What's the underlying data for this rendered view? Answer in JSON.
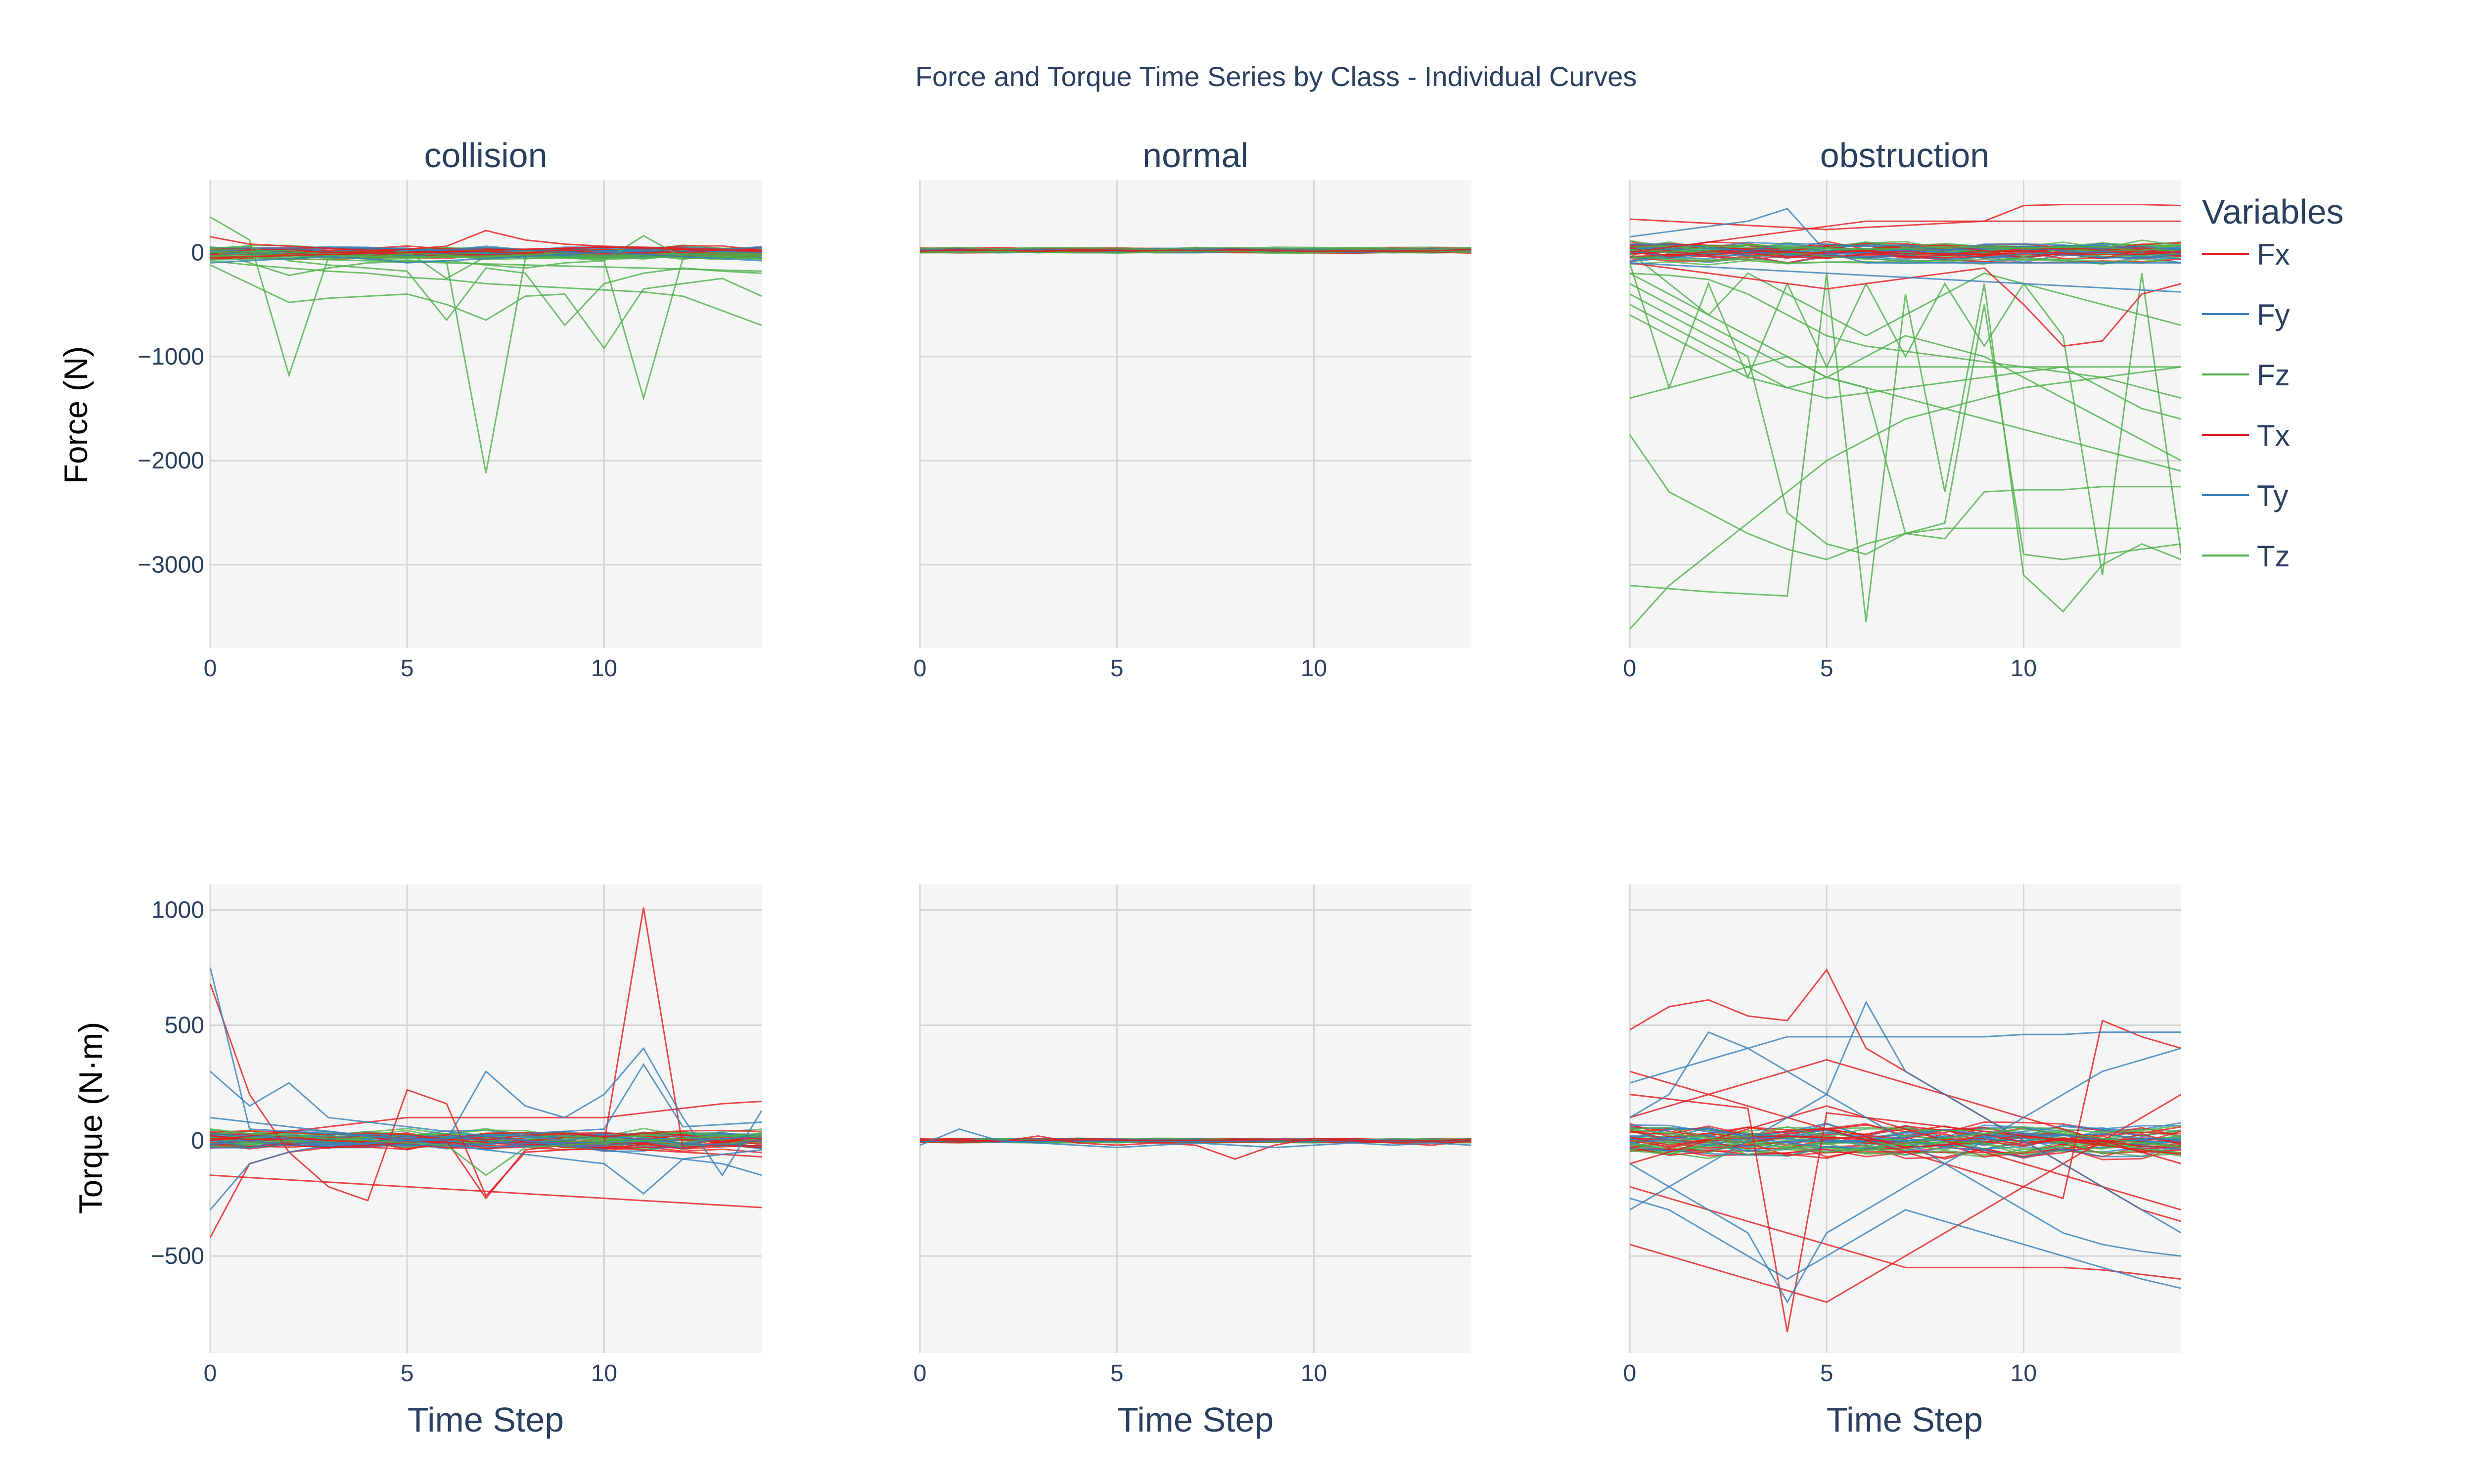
{
  "chart_data": {
    "type": "line",
    "title": "Force and Torque Time Series by Class - Individual Curves",
    "columns": [
      "collision",
      "normal",
      "obstruction"
    ],
    "row_ylabels": [
      "Force (N)",
      "Torque (N·m)"
    ],
    "xlabel": "Time Step",
    "xlim": [
      0,
      14
    ],
    "x_ticks": [
      0,
      5,
      10
    ],
    "x": [
      0,
      1,
      2,
      3,
      4,
      5,
      6,
      7,
      8,
      9,
      10,
      11,
      12,
      13,
      14
    ],
    "force_panel": {
      "ylim": [
        -3800,
        700
      ],
      "y_ticks": [
        0,
        -1000,
        -2000,
        -3000
      ],
      "y_tick_labels": [
        "0",
        "−1000",
        "−2000",
        "−3000"
      ]
    },
    "torque_panel": {
      "ylim": [
        -920,
        1110
      ],
      "y_ticks": [
        1000,
        500,
        0,
        -500
      ],
      "y_tick_labels": [
        "1000",
        "500",
        "0",
        "−500"
      ]
    },
    "legend": {
      "title": "Variables",
      "position": "right",
      "entries": [
        {
          "name": "Fx",
          "color": "#e41a1c"
        },
        {
          "name": "Fy",
          "color": "#377eb8"
        },
        {
          "name": "Fz",
          "color": "#4daf4a"
        },
        {
          "name": "Tx",
          "color": "#e41a1c"
        },
        {
          "name": "Ty",
          "color": "#377eb8"
        },
        {
          "name": "Tz",
          "color": "#4daf4a"
        }
      ]
    },
    "series": [
      {
        "name": "Fz",
        "panel": "collision-force",
        "values": [
          340,
          120,
          -1180,
          -50,
          -60,
          -80,
          -90,
          -2120,
          -60,
          -50,
          -80,
          -1400,
          -60,
          -50,
          -60
        ]
      },
      {
        "name": "Fz",
        "panel": "collision-force",
        "values": [
          -120,
          -300,
          -480,
          -440,
          -420,
          -400,
          -500,
          -650,
          -420,
          -400,
          -920,
          -350,
          -300,
          -250,
          -420
        ]
      },
      {
        "name": "Fz",
        "panel": "collision-force",
        "values": [
          -80,
          -120,
          -150,
          -180,
          -200,
          -240,
          -260,
          -300,
          -320,
          -340,
          -360,
          -380,
          -420,
          -560,
          -700
        ]
      },
      {
        "name": "Fz",
        "panel": "collision-force",
        "values": [
          40,
          60,
          -80,
          -120,
          -150,
          -180,
          -650,
          -150,
          -200,
          -700,
          -300,
          -200,
          -150,
          -180,
          -200
        ]
      },
      {
        "name": "Fz",
        "panel": "collision-force",
        "values": [
          -40,
          -50,
          -60,
          -70,
          -80,
          -90,
          -100,
          -110,
          -120,
          -130,
          -140,
          -150,
          -160,
          -170,
          -180
        ]
      },
      {
        "name": "Fz",
        "panel": "collision-force",
        "values": [
          20,
          -100,
          -220,
          -150,
          -100,
          -90,
          -80,
          -120,
          -150,
          -100,
          -80,
          160,
          -50,
          -30,
          -20
        ]
      },
      {
        "name": "Fz",
        "panel": "collision-force",
        "values": [
          0,
          10,
          20,
          -30,
          -20,
          10,
          -250,
          -40,
          -20,
          -10,
          -30,
          -20,
          -10,
          -5,
          -10
        ]
      },
      {
        "name": "Fx",
        "panel": "collision-force",
        "values": [
          150,
          80,
          60,
          40,
          20,
          30,
          60,
          210,
          120,
          80,
          60,
          50,
          40,
          30,
          20
        ]
      },
      {
        "name": "Fx",
        "panel": "collision-force",
        "values": [
          -50,
          -40,
          -30,
          -20,
          -10,
          0,
          10,
          20,
          30,
          40,
          50,
          40,
          30,
          20,
          10
        ]
      },
      {
        "name": "Fy",
        "panel": "collision-force",
        "values": [
          -100,
          -80,
          -60,
          -40,
          -60,
          -100,
          -80,
          -60,
          -40,
          -20,
          0,
          -20,
          -40,
          -60,
          -80
        ]
      },
      {
        "name": "Fz",
        "panel": "obstruction-force",
        "values": [
          -3620,
          -3200,
          -2900,
          -2600,
          -2300,
          -2000,
          -1800,
          -1600,
          -1500,
          -1400,
          -1300,
          -1250,
          -1200,
          -1150,
          -1100
        ]
      },
      {
        "name": "Fz",
        "panel": "obstruction-force",
        "values": [
          -1750,
          -2300,
          -2500,
          -2700,
          -2850,
          -2950,
          -2800,
          -2700,
          -2650,
          -2650,
          -2650,
          -2650,
          -2650,
          -2650,
          -2650
        ]
      },
      {
        "name": "Fz",
        "panel": "obstruction-force",
        "values": [
          -3200,
          -3230,
          -3260,
          -3280,
          -3300,
          -200,
          -3550,
          -400,
          -2300,
          -300,
          -3100,
          -3450,
          -3000,
          -2800,
          -2950
        ]
      },
      {
        "name": "Fz",
        "panel": "obstruction-force",
        "values": [
          -1400,
          -1300,
          -1200,
          -1100,
          -1000,
          -1200,
          -1300,
          -2700,
          -2750,
          -2300,
          -2280,
          -2280,
          -2250,
          -2250,
          -2250
        ]
      },
      {
        "name": "Fz",
        "panel": "obstruction-force",
        "values": [
          -600,
          -800,
          -1000,
          -1200,
          -1300,
          -1400,
          -1350,
          -1300,
          -1250,
          -1200,
          -1150,
          -1100,
          -1300,
          -1500,
          -1600
        ]
      },
      {
        "name": "Fz",
        "panel": "obstruction-force",
        "values": [
          -200,
          -400,
          -600,
          -800,
          -1000,
          -1200,
          -1300,
          -1400,
          -1500,
          -1600,
          -1700,
          -1800,
          -1900,
          -2000,
          -2100
        ]
      },
      {
        "name": "Fz",
        "panel": "obstruction-force",
        "values": [
          -100,
          -1300,
          -300,
          -1200,
          -300,
          -1100,
          -300,
          -1000,
          -300,
          -900,
          -300,
          -800,
          -3100,
          -200,
          -2900
        ]
      },
      {
        "name": "Fz",
        "panel": "obstruction-force",
        "values": [
          -400,
          -600,
          -800,
          -1000,
          -2500,
          -2800,
          -2900,
          -2700,
          -2600,
          -500,
          -2900,
          -2950,
          -2900,
          -2850,
          -2800
        ]
      },
      {
        "name": "Fz",
        "panel": "obstruction-force",
        "values": [
          -300,
          -500,
          -700,
          -900,
          -1100,
          -1100,
          -1100,
          -1100,
          -1100,
          -1100,
          -1100,
          -1100,
          -1100,
          -1100,
          -1100
        ]
      },
      {
        "name": "Fz",
        "panel": "obstruction-force",
        "values": [
          -200,
          -220,
          -260,
          -400,
          -600,
          -800,
          -900,
          -950,
          -1000,
          -1050,
          -1100,
          -1150,
          -1200,
          -1300,
          -1400
        ]
      },
      {
        "name": "Fz",
        "panel": "obstruction-force",
        "values": [
          0,
          -300,
          -600,
          -200,
          -400,
          -600,
          -800,
          -600,
          -400,
          -200,
          -300,
          -400,
          -500,
          -600,
          -700
        ]
      },
      {
        "name": "Fz",
        "panel": "obstruction-force",
        "values": [
          -500,
          -700,
          -900,
          -1100,
          -1300,
          -1200,
          -1000,
          -800,
          -900,
          -1000,
          -1200,
          -1400,
          -1600,
          -1800,
          -2000
        ]
      },
      {
        "name": "Fx",
        "panel": "obstruction-force",
        "values": [
          320,
          300,
          280,
          260,
          240,
          220,
          240,
          260,
          280,
          300,
          450,
          460,
          460,
          460,
          450
        ]
      },
      {
        "name": "Fx",
        "panel": "obstruction-force",
        "values": [
          -100,
          -150,
          -200,
          -250,
          -300,
          -350,
          -300,
          -250,
          -200,
          -150,
          -500,
          -900,
          -850,
          -400,
          -300
        ]
      },
      {
        "name": "Fx",
        "panel": "obstruction-force",
        "values": [
          0,
          50,
          100,
          150,
          200,
          250,
          300,
          300,
          300,
          300,
          300,
          300,
          300,
          300,
          300
        ]
      },
      {
        "name": "Fy",
        "panel": "obstruction-force",
        "values": [
          150,
          200,
          250,
          300,
          420,
          0,
          -100,
          -100,
          -100,
          -100,
          -100,
          -100,
          -100,
          -100,
          -100
        ]
      },
      {
        "name": "Fy",
        "panel": "obstruction-force",
        "values": [
          -100,
          -120,
          -140,
          -160,
          -180,
          -200,
          -220,
          -240,
          -260,
          -280,
          -300,
          -320,
          -340,
          -360,
          -380
        ]
      },
      {
        "name": "Tx",
        "panel": "collision-torque",
        "values": [
          -420,
          -100,
          -50,
          -30,
          -20,
          -10,
          0,
          -250,
          -40,
          -20,
          -10,
          1010,
          -30,
          -20,
          -30
        ]
      },
      {
        "name": "Tx",
        "panel": "collision-torque",
        "values": [
          680,
          200,
          -50,
          -200,
          -260,
          220,
          160,
          -240,
          -50,
          -40,
          -30,
          -40,
          -50,
          -60,
          -70
        ]
      },
      {
        "name": "Tx",
        "panel": "collision-torque",
        "values": [
          -150,
          -160,
          -170,
          -180,
          -190,
          -200,
          -210,
          -220,
          -230,
          -240,
          -250,
          -260,
          -270,
          -280,
          -290
        ]
      },
      {
        "name": "Tx",
        "panel": "collision-torque",
        "values": [
          0,
          20,
          40,
          60,
          80,
          100,
          100,
          100,
          100,
          100,
          100,
          120,
          140,
          160,
          170
        ]
      },
      {
        "name": "Ty",
        "panel": "collision-torque",
        "values": [
          750,
          50,
          40,
          30,
          20,
          10,
          0,
          300,
          150,
          100,
          200,
          400,
          100,
          -150,
          130
        ]
      },
      {
        "name": "Ty",
        "panel": "collision-torque",
        "values": [
          300,
          150,
          250,
          100,
          80,
          60,
          40,
          20,
          0,
          -20,
          -40,
          -60,
          -80,
          -100,
          -150
        ]
      },
      {
        "name": "Ty",
        "panel": "collision-torque",
        "values": [
          -300,
          -100,
          -50,
          -20,
          -10,
          0,
          10,
          20,
          30,
          40,
          50,
          330,
          60,
          70,
          80
        ]
      },
      {
        "name": "Ty",
        "panel": "collision-torque",
        "values": [
          100,
          80,
          60,
          40,
          20,
          0,
          -20,
          -40,
          -60,
          -80,
          -100,
          -230,
          -80,
          -60,
          -40
        ]
      },
      {
        "name": "Tz",
        "panel": "collision-torque",
        "values": [
          50,
          30,
          20,
          10,
          0,
          -10,
          -20,
          -150,
          -30,
          -20,
          -10,
          0,
          10,
          20,
          30
        ]
      },
      {
        "name": "Tx",
        "panel": "normal-torque",
        "values": [
          0,
          5,
          -5,
          20,
          -10,
          -20,
          -10,
          -20,
          -80,
          -20,
          10,
          0,
          -10,
          -20,
          0
        ]
      },
      {
        "name": "Ty",
        "panel": "normal-torque",
        "values": [
          -20,
          50,
          0,
          -10,
          -20,
          -30,
          -20,
          -10,
          -20,
          -30,
          -20,
          -10,
          -20,
          -10,
          -20
        ]
      },
      {
        "name": "Tx",
        "panel": "obstruction-torque",
        "values": [
          480,
          580,
          610,
          540,
          520,
          740,
          400,
          300,
          200,
          100,
          0,
          -100,
          -200,
          -300,
          -350
        ]
      },
      {
        "name": "Tx",
        "panel": "obstruction-torque",
        "values": [
          -450,
          -500,
          -550,
          -600,
          -650,
          -700,
          -600,
          -500,
          -400,
          -300,
          -200,
          -100,
          0,
          100,
          200
        ]
      },
      {
        "name": "Tx",
        "panel": "obstruction-torque",
        "values": [
          300,
          250,
          200,
          150,
          100,
          50,
          0,
          -50,
          -100,
          -150,
          -200,
          -250,
          520,
          450,
          400
        ]
      },
      {
        "name": "Tx",
        "panel": "obstruction-torque",
        "values": [
          -200,
          -250,
          -300,
          -350,
          -400,
          -450,
          -500,
          -550,
          -550,
          -550,
          -550,
          -550,
          -560,
          -580,
          -600
        ]
      },
      {
        "name": "Tx",
        "panel": "obstruction-torque",
        "values": [
          100,
          150,
          200,
          250,
          300,
          350,
          300,
          250,
          200,
          150,
          100,
          50,
          0,
          -50,
          -100
        ]
      },
      {
        "name": "Tx",
        "panel": "obstruction-torque",
        "values": [
          -100,
          -50,
          0,
          50,
          100,
          150,
          100,
          50,
          0,
          -50,
          -100,
          -150,
          -200,
          -250,
          -300
        ]
      },
      {
        "name": "Tx",
        "panel": "obstruction-torque",
        "values": [
          200,
          180,
          160,
          140,
          -830,
          120,
          100,
          80,
          60,
          40,
          20,
          0,
          -20,
          -40,
          -60
        ]
      },
      {
        "name": "Ty",
        "panel": "obstruction-torque",
        "values": [
          -300,
          -200,
          -100,
          0,
          100,
          200,
          600,
          300,
          200,
          100,
          0,
          -100,
          -200,
          -300,
          -400
        ]
      },
      {
        "name": "Ty",
        "panel": "obstruction-torque",
        "values": [
          250,
          300,
          350,
          400,
          450,
          450,
          450,
          450,
          450,
          450,
          460,
          460,
          470,
          470,
          470
        ]
      },
      {
        "name": "Ty",
        "panel": "obstruction-torque",
        "values": [
          -250,
          -300,
          -400,
          -500,
          -600,
          -500,
          -400,
          -300,
          -350,
          -400,
          -450,
          -500,
          -550,
          -600,
          -640
        ]
      },
      {
        "name": "Ty",
        "panel": "obstruction-torque",
        "values": [
          100,
          200,
          470,
          400,
          300,
          200,
          100,
          0,
          -100,
          -200,
          -300,
          -400,
          -450,
          -480,
          -500
        ]
      },
      {
        "name": "Ty",
        "panel": "obstruction-torque",
        "values": [
          -100,
          -200,
          -300,
          -400,
          -700,
          -400,
          -300,
          -200,
          -100,
          0,
          100,
          200,
          300,
          350,
          400
        ]
      },
      {
        "name": "Tz",
        "panel": "obstruction-torque",
        "values": [
          50,
          30,
          10,
          -10,
          -30,
          -50,
          -30,
          -10,
          10,
          30,
          50,
          30,
          10,
          -10,
          -30
        ]
      }
    ]
  }
}
